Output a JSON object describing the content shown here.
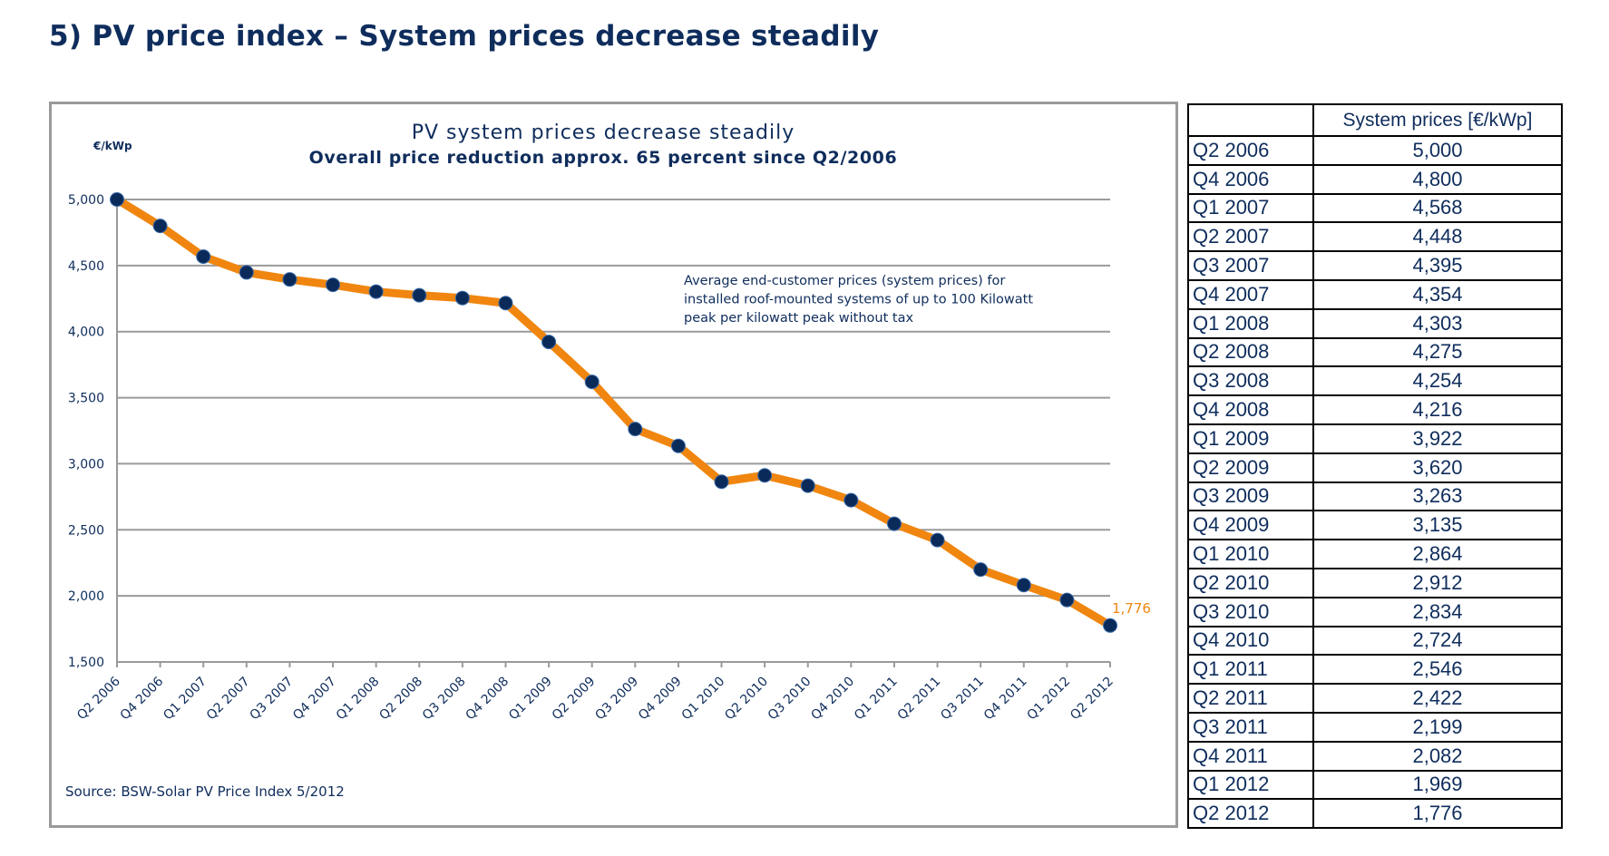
{
  "page_title": "5) PV price index – System prices decrease steadily",
  "chart_data": {
    "type": "line",
    "title": "PV system prices decrease steadily",
    "subtitle": "Overall price reduction approx. 65 percent  since Q2/2006",
    "ylabel": "€/kWp",
    "xlabel": "",
    "ylim": [
      1500,
      5000
    ],
    "yticks": [
      1500,
      2000,
      2500,
      3000,
      3500,
      4000,
      4500,
      5000
    ],
    "ytick_labels": [
      "1,500",
      "2,000",
      "2,500",
      "3,000",
      "3,500",
      "4,000",
      "4,500",
      "5,000"
    ],
    "grid": "horizontal",
    "categories": [
      "Q2 2006",
      "Q4 2006",
      "Q1 2007",
      "Q2 2007",
      "Q3 2007",
      "Q4 2007",
      "Q1 2008",
      "Q2 2008",
      "Q3 2008",
      "Q4 2008",
      "Q1 2009",
      "Q2 2009",
      "Q3 2009",
      "Q4 2009",
      "Q1 2010",
      "Q2 2010",
      "Q3 2010",
      "Q4 2010",
      "Q1 2011",
      "Q2 2011",
      "Q3 2011",
      "Q4 2011",
      "Q1 2012",
      "Q2 2012"
    ],
    "values": [
      5000,
      4800,
      4568,
      4448,
      4395,
      4354,
      4303,
      4275,
      4254,
      4216,
      3922,
      3620,
      3263,
      3135,
      2864,
      2912,
      2834,
      2724,
      2546,
      2422,
      2199,
      2082,
      1969,
      1776
    ],
    "last_value_label": "1,776",
    "annotation": [
      "Average end-customer prices (system prices) for",
      "installed roof-mounted systems of up to 100 Kilowatt",
      "peak per kilowatt peak without tax"
    ],
    "source": "Source: BSW-Solar  PV Price Index 5/2012",
    "colors": {
      "line": "#f0860f",
      "marker": "#0a2a5a",
      "grid": "#9a9a9a",
      "text": "#0f2d5c",
      "last_label": "#f0860f"
    }
  },
  "table": {
    "header": [
      "",
      "System prices [€/kWp]"
    ],
    "rows": [
      [
        "Q2 2006",
        "5,000"
      ],
      [
        "Q4 2006",
        "4,800"
      ],
      [
        "Q1 2007",
        "4,568"
      ],
      [
        "Q2 2007",
        "4,448"
      ],
      [
        "Q3 2007",
        "4,395"
      ],
      [
        "Q4 2007",
        "4,354"
      ],
      [
        "Q1 2008",
        "4,303"
      ],
      [
        "Q2 2008",
        "4,275"
      ],
      [
        "Q3 2008",
        "4,254"
      ],
      [
        "Q4 2008",
        "4,216"
      ],
      [
        "Q1 2009",
        "3,922"
      ],
      [
        "Q2 2009",
        "3,620"
      ],
      [
        "Q3 2009",
        "3,263"
      ],
      [
        "Q4 2009",
        "3,135"
      ],
      [
        "Q1 2010",
        "2,864"
      ],
      [
        "Q2 2010",
        "2,912"
      ],
      [
        "Q3 2010",
        "2,834"
      ],
      [
        "Q4 2010",
        "2,724"
      ],
      [
        "Q1 2011",
        "2,546"
      ],
      [
        "Q2 2011",
        "2,422"
      ],
      [
        "Q3 2011",
        "2,199"
      ],
      [
        "Q4 2011",
        "2,082"
      ],
      [
        "Q1 2012",
        "1,969"
      ],
      [
        "Q2 2012",
        "1,776"
      ]
    ]
  }
}
